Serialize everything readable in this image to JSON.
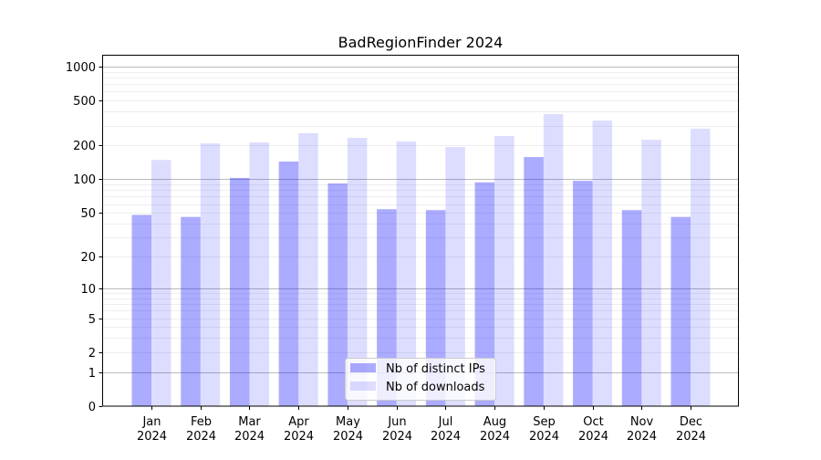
{
  "chart_data": {
    "type": "bar",
    "title": "BadRegionFinder 2024",
    "xlabel": "",
    "ylabel": "",
    "yscale": "log10(y+1)",
    "ylim": [
      0,
      1273
    ],
    "yticks": [
      0,
      1,
      2,
      5,
      10,
      20,
      50,
      100,
      200,
      500,
      1000
    ],
    "grid": true,
    "legend_position": "lower-center",
    "categories": [
      [
        "Jan",
        "2024"
      ],
      [
        "Feb",
        "2024"
      ],
      [
        "Mar",
        "2024"
      ],
      [
        "Apr",
        "2024"
      ],
      [
        "May",
        "2024"
      ],
      [
        "Jun",
        "2024"
      ],
      [
        "Jul",
        "2024"
      ],
      [
        "Aug",
        "2024"
      ],
      [
        "Sep",
        "2024"
      ],
      [
        "Oct",
        "2024"
      ],
      [
        "Nov",
        "2024"
      ],
      [
        "Dec",
        "2024"
      ]
    ],
    "series": [
      {
        "name": "Nb of distinct IPs",
        "color": "#0000ff",
        "opacity": 0.33,
        "values": [
          48,
          46,
          103,
          144,
          92,
          54,
          53,
          94,
          158,
          97,
          53,
          46
        ]
      },
      {
        "name": "Nb of downloads",
        "color": "#0000ff",
        "opacity": 0.135,
        "values": [
          149,
          209,
          213,
          257,
          234,
          217,
          194,
          243,
          380,
          333,
          225,
          282
        ]
      }
    ]
  }
}
